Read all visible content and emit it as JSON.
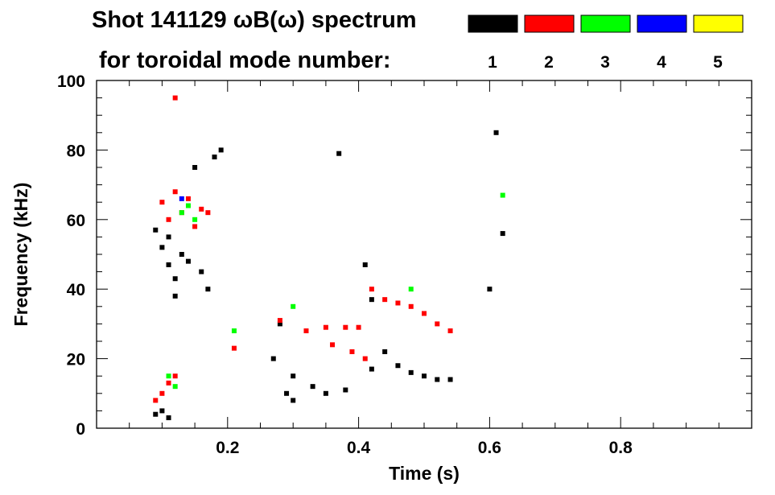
{
  "chart_data": {
    "type": "scatter",
    "title": "Shot 141129 ωB(ω) spectrum",
    "subtitle": "for toroidal mode number:",
    "xlabel": "Time (s)",
    "ylabel": "Frequency (kHz)",
    "xlim": [
      0.0,
      1.0
    ],
    "ylim": [
      0,
      100
    ],
    "x_ticks": [
      "0.2",
      "0.4",
      "0.6",
      "0.8"
    ],
    "x_tick_values": [
      0.2,
      0.4,
      0.6,
      0.8
    ],
    "y_ticks": [
      "0",
      "20",
      "40",
      "60",
      "80",
      "100"
    ],
    "y_tick_values": [
      0,
      20,
      40,
      60,
      80,
      100
    ],
    "grid": false,
    "legend_position": "top-right",
    "series": [
      {
        "name": "1",
        "color": "#000000",
        "points": [
          [
            0.09,
            4
          ],
          [
            0.1,
            5
          ],
          [
            0.11,
            3
          ],
          [
            0.09,
            57
          ],
          [
            0.1,
            52
          ],
          [
            0.11,
            47
          ],
          [
            0.12,
            43
          ],
          [
            0.13,
            50
          ],
          [
            0.11,
            55
          ],
          [
            0.12,
            38
          ],
          [
            0.14,
            48
          ],
          [
            0.16,
            45
          ],
          [
            0.17,
            40
          ],
          [
            0.18,
            78
          ],
          [
            0.19,
            80
          ],
          [
            0.15,
            75
          ],
          [
            0.29,
            10
          ],
          [
            0.3,
            8
          ],
          [
            0.28,
            30
          ],
          [
            0.27,
            20
          ],
          [
            0.3,
            15
          ],
          [
            0.33,
            12
          ],
          [
            0.35,
            10
          ],
          [
            0.38,
            11
          ],
          [
            0.37,
            79
          ],
          [
            0.42,
            17
          ],
          [
            0.44,
            22
          ],
          [
            0.46,
            18
          ],
          [
            0.48,
            16
          ],
          [
            0.5,
            15
          ],
          [
            0.52,
            14
          ],
          [
            0.54,
            14
          ],
          [
            0.41,
            47
          ],
          [
            0.42,
            37
          ],
          [
            0.61,
            85
          ],
          [
            0.62,
            56
          ],
          [
            0.6,
            40
          ]
        ]
      },
      {
        "name": "2",
        "color": "#ff0000",
        "points": [
          [
            0.09,
            8
          ],
          [
            0.1,
            10
          ],
          [
            0.11,
            13
          ],
          [
            0.12,
            15
          ],
          [
            0.1,
            65
          ],
          [
            0.11,
            60
          ],
          [
            0.12,
            68
          ],
          [
            0.13,
            62
          ],
          [
            0.14,
            66
          ],
          [
            0.15,
            58
          ],
          [
            0.16,
            63
          ],
          [
            0.17,
            62
          ],
          [
            0.12,
            95
          ],
          [
            0.21,
            23
          ],
          [
            0.28,
            31
          ],
          [
            0.32,
            28
          ],
          [
            0.36,
            24
          ],
          [
            0.39,
            22
          ],
          [
            0.41,
            20
          ],
          [
            0.35,
            29
          ],
          [
            0.38,
            29
          ],
          [
            0.4,
            29
          ],
          [
            0.42,
            40
          ],
          [
            0.44,
            37
          ],
          [
            0.46,
            36
          ],
          [
            0.48,
            35
          ],
          [
            0.5,
            33
          ],
          [
            0.52,
            30
          ],
          [
            0.54,
            28
          ]
        ]
      },
      {
        "name": "3",
        "color": "#00ff00",
        "points": [
          [
            0.11,
            15
          ],
          [
            0.12,
            12
          ],
          [
            0.13,
            62
          ],
          [
            0.14,
            64
          ],
          [
            0.15,
            60
          ],
          [
            0.21,
            28
          ],
          [
            0.3,
            35
          ],
          [
            0.48,
            40
          ],
          [
            0.62,
            67
          ]
        ]
      },
      {
        "name": "4",
        "color": "#0000ff",
        "points": [
          [
            0.13,
            66
          ]
        ]
      },
      {
        "name": "5",
        "color": "#ffff00",
        "points": []
      }
    ]
  }
}
